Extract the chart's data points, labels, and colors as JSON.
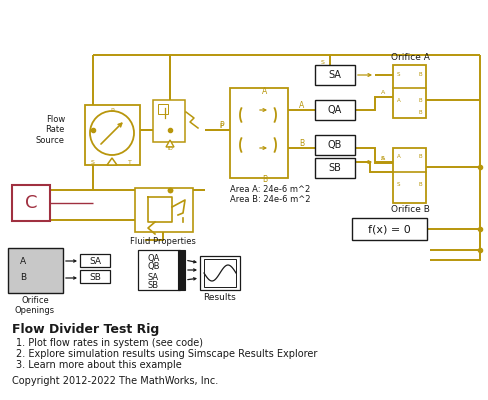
{
  "title": "Flow Divider Test Rig",
  "bullet1": "1. Plot flow rates in system (see code)",
  "bullet2": "2. Explore simulation results using Simscape Results Explorer",
  "bullet3": "3. Learn more about this example",
  "copyright": "Copyright 2012-2022 The MathWorks, Inc.",
  "gold": "#B8960C",
  "black": "#1A1A1A",
  "white": "#FFFFFF",
  "red": "#A03040",
  "gray_light": "#C8C8C8",
  "dark_red": "#8B2030"
}
